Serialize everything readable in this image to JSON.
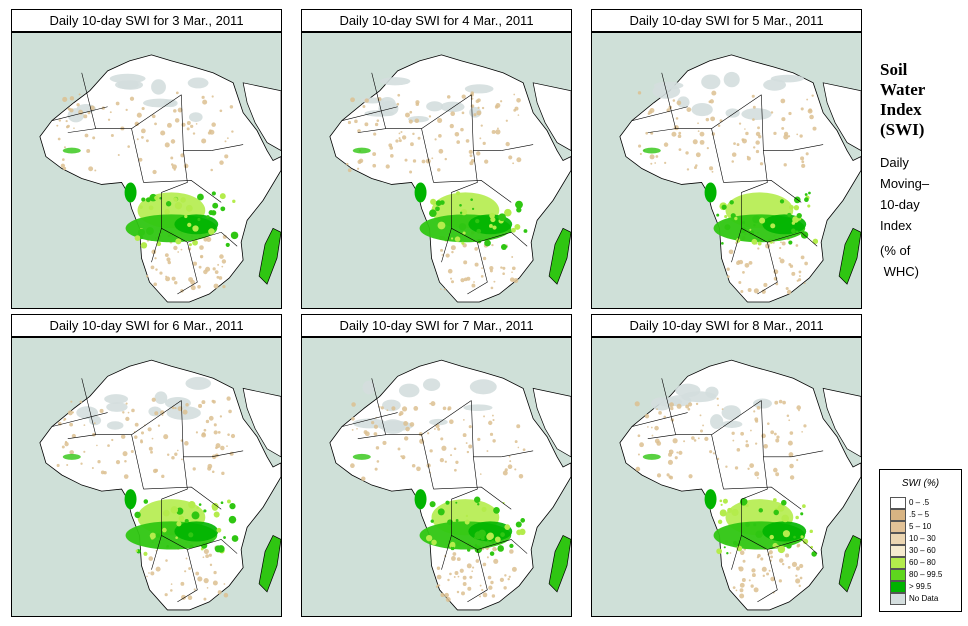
{
  "panels": [
    {
      "title": "Daily 10-day SWI for  3 Mar., 2011",
      "date": "3 Mar., 2011"
    },
    {
      "title": "Daily 10-day SWI for  4 Mar., 2011",
      "date": "4 Mar., 2011"
    },
    {
      "title": "Daily 10-day SWI for  5 Mar., 2011",
      "date": "5 Mar., 2011"
    },
    {
      "title": "Daily 10-day SWI for  6 Mar., 2011",
      "date": "6 Mar., 2011"
    },
    {
      "title": "Daily 10-day SWI for  7 Mar., 2011",
      "date": "7 Mar., 2011"
    },
    {
      "title": "Daily 10-day SWI for  8 Mar., 2011",
      "date": "8 Mar., 2011"
    }
  ],
  "side": {
    "title_line1": "Soil",
    "title_line2": "Water",
    "title_line3": "Index",
    "title_line4": "(SWI)",
    "desc_line1": "Daily",
    "desc_line2": "Moving–",
    "desc_line3": "10-day",
    "desc_line4": "Index",
    "units_line1": "(% of",
    "units_line2": " WHC)"
  },
  "legend": {
    "title": "SWI (%)",
    "items": [
      {
        "label": "0 – .5",
        "color": "#ffffff"
      },
      {
        "label": ".5 – 5",
        "color": "#d8b483"
      },
      {
        "label": "5 – 10",
        "color": "#e2c297"
      },
      {
        "label": "10 – 30",
        "color": "#ecd6b2"
      },
      {
        "label": "30 – 60",
        "color": "#f6ebcf"
      },
      {
        "label": "60 – 80",
        "color": "#b4ec4c"
      },
      {
        "label": "80 – 99.5",
        "color": "#5ed61e"
      },
      {
        "label": "> 99.5",
        "color": "#00b400"
      },
      {
        "label": "No Data",
        "color": "#d4dede"
      }
    ]
  },
  "colors": {
    "ocean": "#cfe0d8",
    "land": "#ffffff",
    "sahara_nodata": "#d4dede",
    "dry": "#dcbf91",
    "wet_light": "#b4ec4c",
    "wet": "#2fc612",
    "wet_dark": "#00b400"
  }
}
